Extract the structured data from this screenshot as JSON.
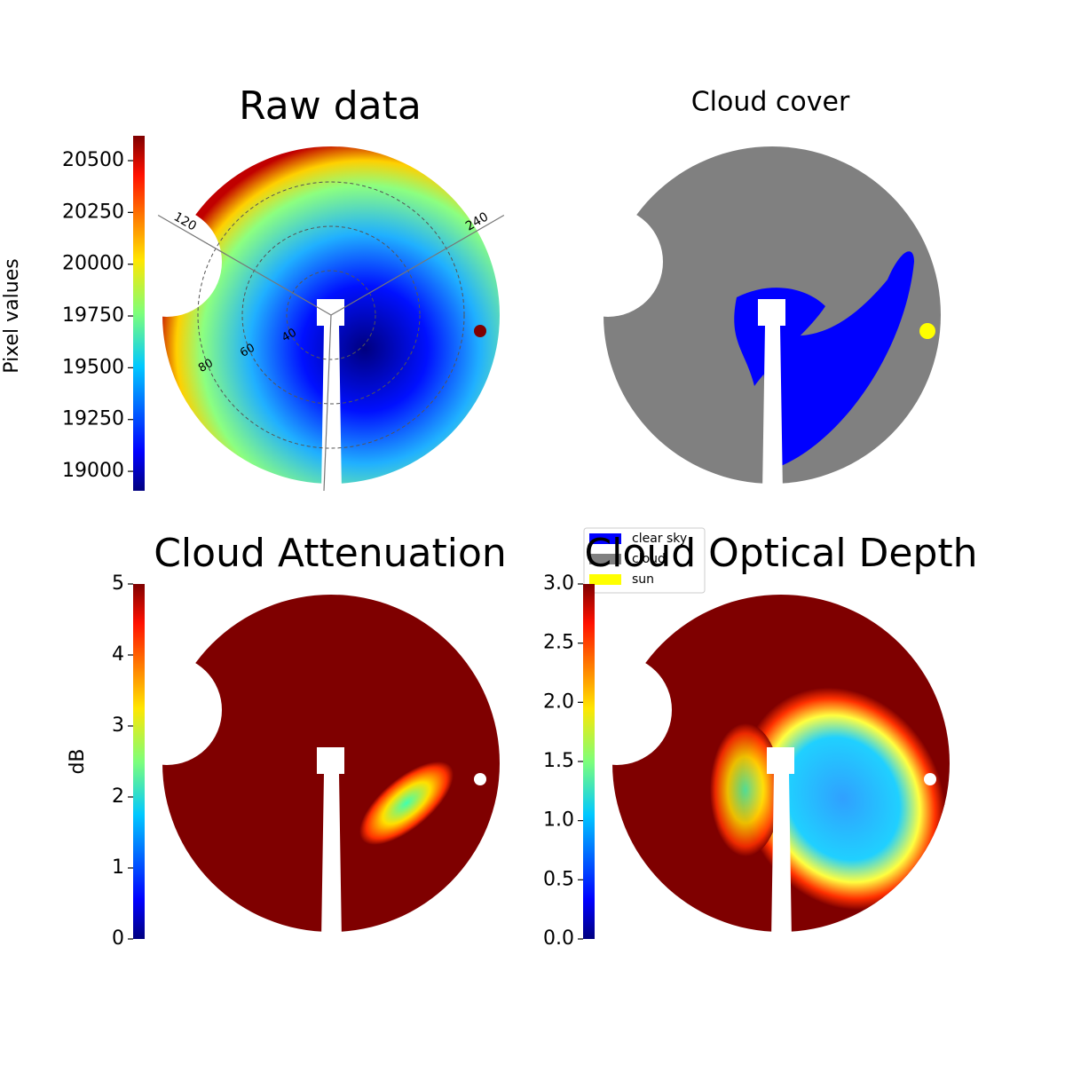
{
  "chart_data": [
    {
      "type": "image",
      "title": "Raw data",
      "colorbar": {
        "label": "Pixel values",
        "lim": [
          18906,
          20620
        ],
        "ticks": [
          19000,
          19250,
          19500,
          19750,
          20000,
          20250,
          20500
        ]
      },
      "polar": {
        "rlim": [
          20,
          100
        ],
        "azimuth_ticks": [
          120,
          240
        ],
        "zenith_ticks": [
          40,
          60,
          80
        ]
      }
    },
    {
      "type": "image",
      "title": "Cloud cover",
      "legend_entries": [
        {
          "name": "clear sky",
          "color": "#0000ff"
        },
        {
          "name": "cloud",
          "color": "#808080"
        },
        {
          "name": "sun",
          "color": "#ffff00"
        }
      ]
    },
    {
      "type": "image",
      "title": "Cloud Attenuation",
      "colorbar": {
        "label": "dB",
        "lim": [
          0,
          5
        ],
        "ticks": [
          0,
          1,
          2,
          3,
          4,
          5
        ]
      }
    },
    {
      "type": "image",
      "title": "Cloud Optical Depth",
      "colorbar": {
        "lim": [
          0,
          3
        ],
        "ticks": [
          {
            "value": 0,
            "label": "0.0"
          },
          {
            "value": 0.5,
            "label": "0.5"
          },
          {
            "value": 1,
            "label": "1.0"
          },
          {
            "value": 1.5,
            "label": "1.5"
          },
          {
            "value": 2,
            "label": "2.0"
          },
          {
            "value": 2.5,
            "label": "2.5"
          },
          {
            "value": 3,
            "label": "3.0"
          }
        ]
      }
    }
  ]
}
